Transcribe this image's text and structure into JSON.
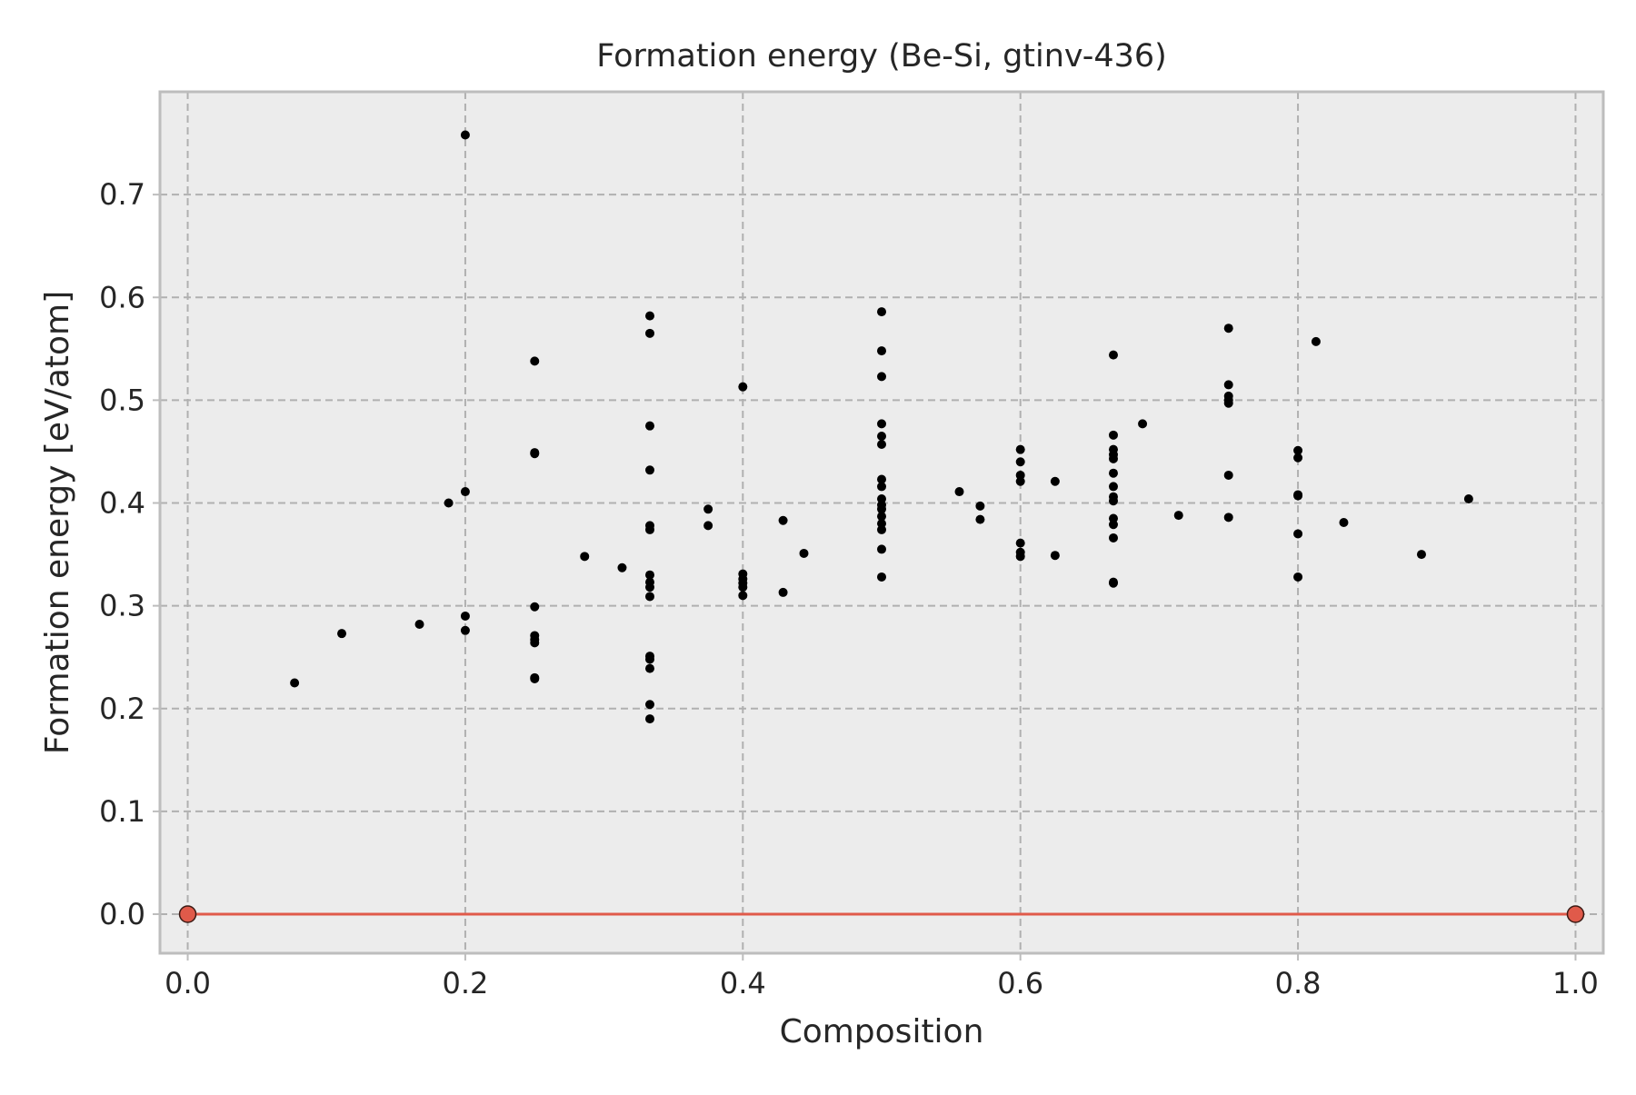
{
  "chart_data": {
    "type": "scatter",
    "title": "Formation energy (Be-Si, gtinv-436)",
    "xlabel": "Composition",
    "ylabel": "Formation energy [eV/atom]",
    "xlim": [
      -0.02,
      1.02
    ],
    "ylim": [
      -0.038,
      0.8
    ],
    "xticks": [
      "0.0",
      "0.2",
      "0.4",
      "0.6",
      "0.8",
      "1.0"
    ],
    "yticks": [
      "0.0",
      "0.1",
      "0.2",
      "0.3",
      "0.4",
      "0.5",
      "0.6",
      "0.7"
    ],
    "grid": true,
    "colors": {
      "background": "#ececec",
      "grid": "#b0b0b0",
      "points": "#000000",
      "hull": "#e05a4a",
      "frame": "#bdbdbd"
    },
    "series": [
      {
        "points": [
          [
            0.077,
            0.225
          ],
          [
            0.111,
            0.273
          ],
          [
            0.167,
            0.282
          ],
          [
            0.188,
            0.4
          ],
          [
            0.2,
            0.758
          ],
          [
            0.2,
            0.411
          ],
          [
            0.2,
            0.29
          ],
          [
            0.2,
            0.276
          ],
          [
            0.25,
            0.538
          ],
          [
            0.25,
            0.449
          ],
          [
            0.25,
            0.448
          ],
          [
            0.25,
            0.299
          ],
          [
            0.25,
            0.271
          ],
          [
            0.25,
            0.267
          ],
          [
            0.25,
            0.264
          ],
          [
            0.25,
            0.23
          ],
          [
            0.25,
            0.229
          ],
          [
            0.286,
            0.348
          ],
          [
            0.313,
            0.337
          ],
          [
            0.333,
            0.582
          ],
          [
            0.333,
            0.565
          ],
          [
            0.333,
            0.475
          ],
          [
            0.333,
            0.432
          ],
          [
            0.333,
            0.378
          ],
          [
            0.333,
            0.374
          ],
          [
            0.333,
            0.33
          ],
          [
            0.333,
            0.323
          ],
          [
            0.333,
            0.318
          ],
          [
            0.333,
            0.309
          ],
          [
            0.333,
            0.251
          ],
          [
            0.333,
            0.248
          ],
          [
            0.333,
            0.239
          ],
          [
            0.333,
            0.204
          ],
          [
            0.333,
            0.19
          ],
          [
            0.375,
            0.394
          ],
          [
            0.375,
            0.378
          ],
          [
            0.4,
            0.513
          ],
          [
            0.4,
            0.331
          ],
          [
            0.4,
            0.326
          ],
          [
            0.4,
            0.322
          ],
          [
            0.4,
            0.318
          ],
          [
            0.4,
            0.31
          ],
          [
            0.429,
            0.383
          ],
          [
            0.429,
            0.313
          ],
          [
            0.444,
            0.351
          ],
          [
            0.5,
            0.586
          ],
          [
            0.5,
            0.548
          ],
          [
            0.5,
            0.523
          ],
          [
            0.5,
            0.477
          ],
          [
            0.5,
            0.465
          ],
          [
            0.5,
            0.457
          ],
          [
            0.5,
            0.423
          ],
          [
            0.5,
            0.416
          ],
          [
            0.5,
            0.404
          ],
          [
            0.5,
            0.398
          ],
          [
            0.5,
            0.394
          ],
          [
            0.5,
            0.387
          ],
          [
            0.5,
            0.38
          ],
          [
            0.5,
            0.374
          ],
          [
            0.5,
            0.355
          ],
          [
            0.5,
            0.328
          ],
          [
            0.556,
            0.411
          ],
          [
            0.571,
            0.397
          ],
          [
            0.571,
            0.384
          ],
          [
            0.6,
            0.452
          ],
          [
            0.6,
            0.44
          ],
          [
            0.6,
            0.427
          ],
          [
            0.6,
            0.421
          ],
          [
            0.6,
            0.361
          ],
          [
            0.6,
            0.352
          ],
          [
            0.6,
            0.348
          ],
          [
            0.625,
            0.421
          ],
          [
            0.625,
            0.349
          ],
          [
            0.667,
            0.544
          ],
          [
            0.667,
            0.466
          ],
          [
            0.667,
            0.452
          ],
          [
            0.667,
            0.447
          ],
          [
            0.667,
            0.443
          ],
          [
            0.667,
            0.429
          ],
          [
            0.667,
            0.416
          ],
          [
            0.667,
            0.406
          ],
          [
            0.667,
            0.402
          ],
          [
            0.667,
            0.385
          ],
          [
            0.667,
            0.379
          ],
          [
            0.667,
            0.366
          ],
          [
            0.667,
            0.323
          ],
          [
            0.667,
            0.322
          ],
          [
            0.688,
            0.477
          ],
          [
            0.714,
            0.388
          ],
          [
            0.75,
            0.57
          ],
          [
            0.75,
            0.515
          ],
          [
            0.75,
            0.504
          ],
          [
            0.75,
            0.5
          ],
          [
            0.75,
            0.497
          ],
          [
            0.75,
            0.427
          ],
          [
            0.75,
            0.386
          ],
          [
            0.8,
            0.451
          ],
          [
            0.8,
            0.444
          ],
          [
            0.8,
            0.408
          ],
          [
            0.8,
            0.407
          ],
          [
            0.8,
            0.37
          ],
          [
            0.8,
            0.328
          ],
          [
            0.813,
            0.557
          ],
          [
            0.833,
            0.381
          ],
          [
            0.889,
            0.35
          ],
          [
            0.923,
            0.404
          ]
        ]
      },
      {
        "type": "line",
        "points": [
          [
            0.0,
            0.0
          ],
          [
            1.0,
            0.0
          ]
        ]
      }
    ]
  }
}
